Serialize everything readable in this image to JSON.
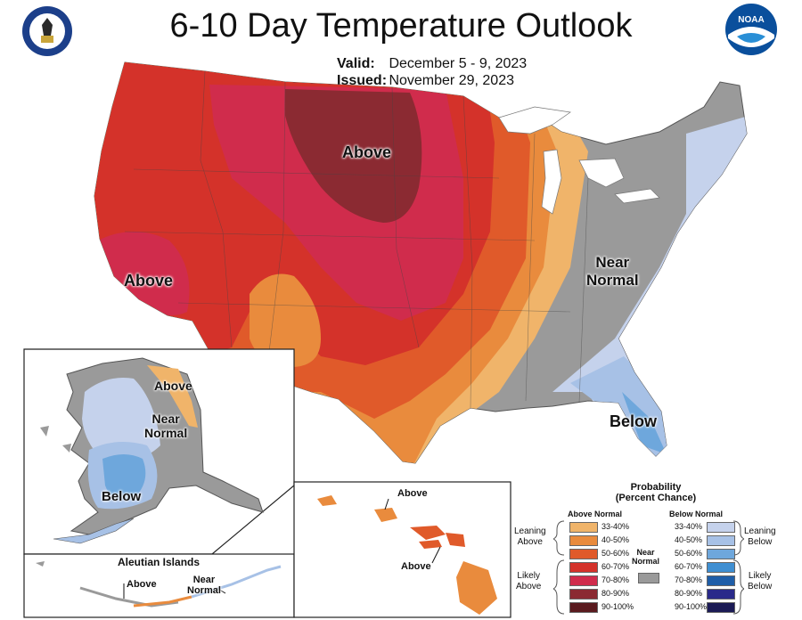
{
  "header": {
    "title": "6-10 Day Temperature Outlook",
    "valid_label": "Valid:",
    "valid_value": "December 5 - 9, 2023",
    "issued_label": "Issued:",
    "issued_value": "November 29, 2023"
  },
  "logos": {
    "left": "doc-seal-icon",
    "right": "noaa-logo-icon",
    "noaa_text": "NOAA"
  },
  "map_labels": {
    "conus_above_north": "Above",
    "conus_above_west": "Above",
    "conus_near_normal": [
      "Near",
      "Normal"
    ],
    "conus_below": "Below",
    "alaska_above": "Above",
    "alaska_near_normal": [
      "Near",
      "Normal"
    ],
    "alaska_below": "Below",
    "aleutian_title": "Aleutian Islands",
    "aleutian_above": "Above",
    "aleutian_near_normal": [
      "Near",
      "Normal"
    ],
    "hawaii_above_top": "Above",
    "hawaii_above_bottom": "Above"
  },
  "legend": {
    "title_line1": "Probability",
    "title_line2": "(Percent Chance)",
    "above_header": "Above Normal",
    "below_header": "Below Normal",
    "near_normal": [
      "Near",
      "Normal"
    ],
    "leaning_above": [
      "Leaning",
      "Above"
    ],
    "likely_above": [
      "Likely",
      "Above"
    ],
    "leaning_below": [
      "Leaning",
      "Below"
    ],
    "likely_below": [
      "Likely",
      "Below"
    ],
    "ranges": [
      "33-40%",
      "40-50%",
      "50-60%",
      "60-70%",
      "70-80%",
      "80-90%",
      "90-100%"
    ],
    "above_colors": [
      "#f0b46a",
      "#e98b3d",
      "#e05a2a",
      "#d4322a",
      "#d02c4c",
      "#8b2a32",
      "#5a1a1e"
    ],
    "below_colors": [
      "#c5d2ec",
      "#a7c1e6",
      "#6ea7dc",
      "#3f8fd2",
      "#1f5ea8",
      "#2a2a8a",
      "#1b1a55"
    ],
    "near_color": "#9a9a9a"
  }
}
